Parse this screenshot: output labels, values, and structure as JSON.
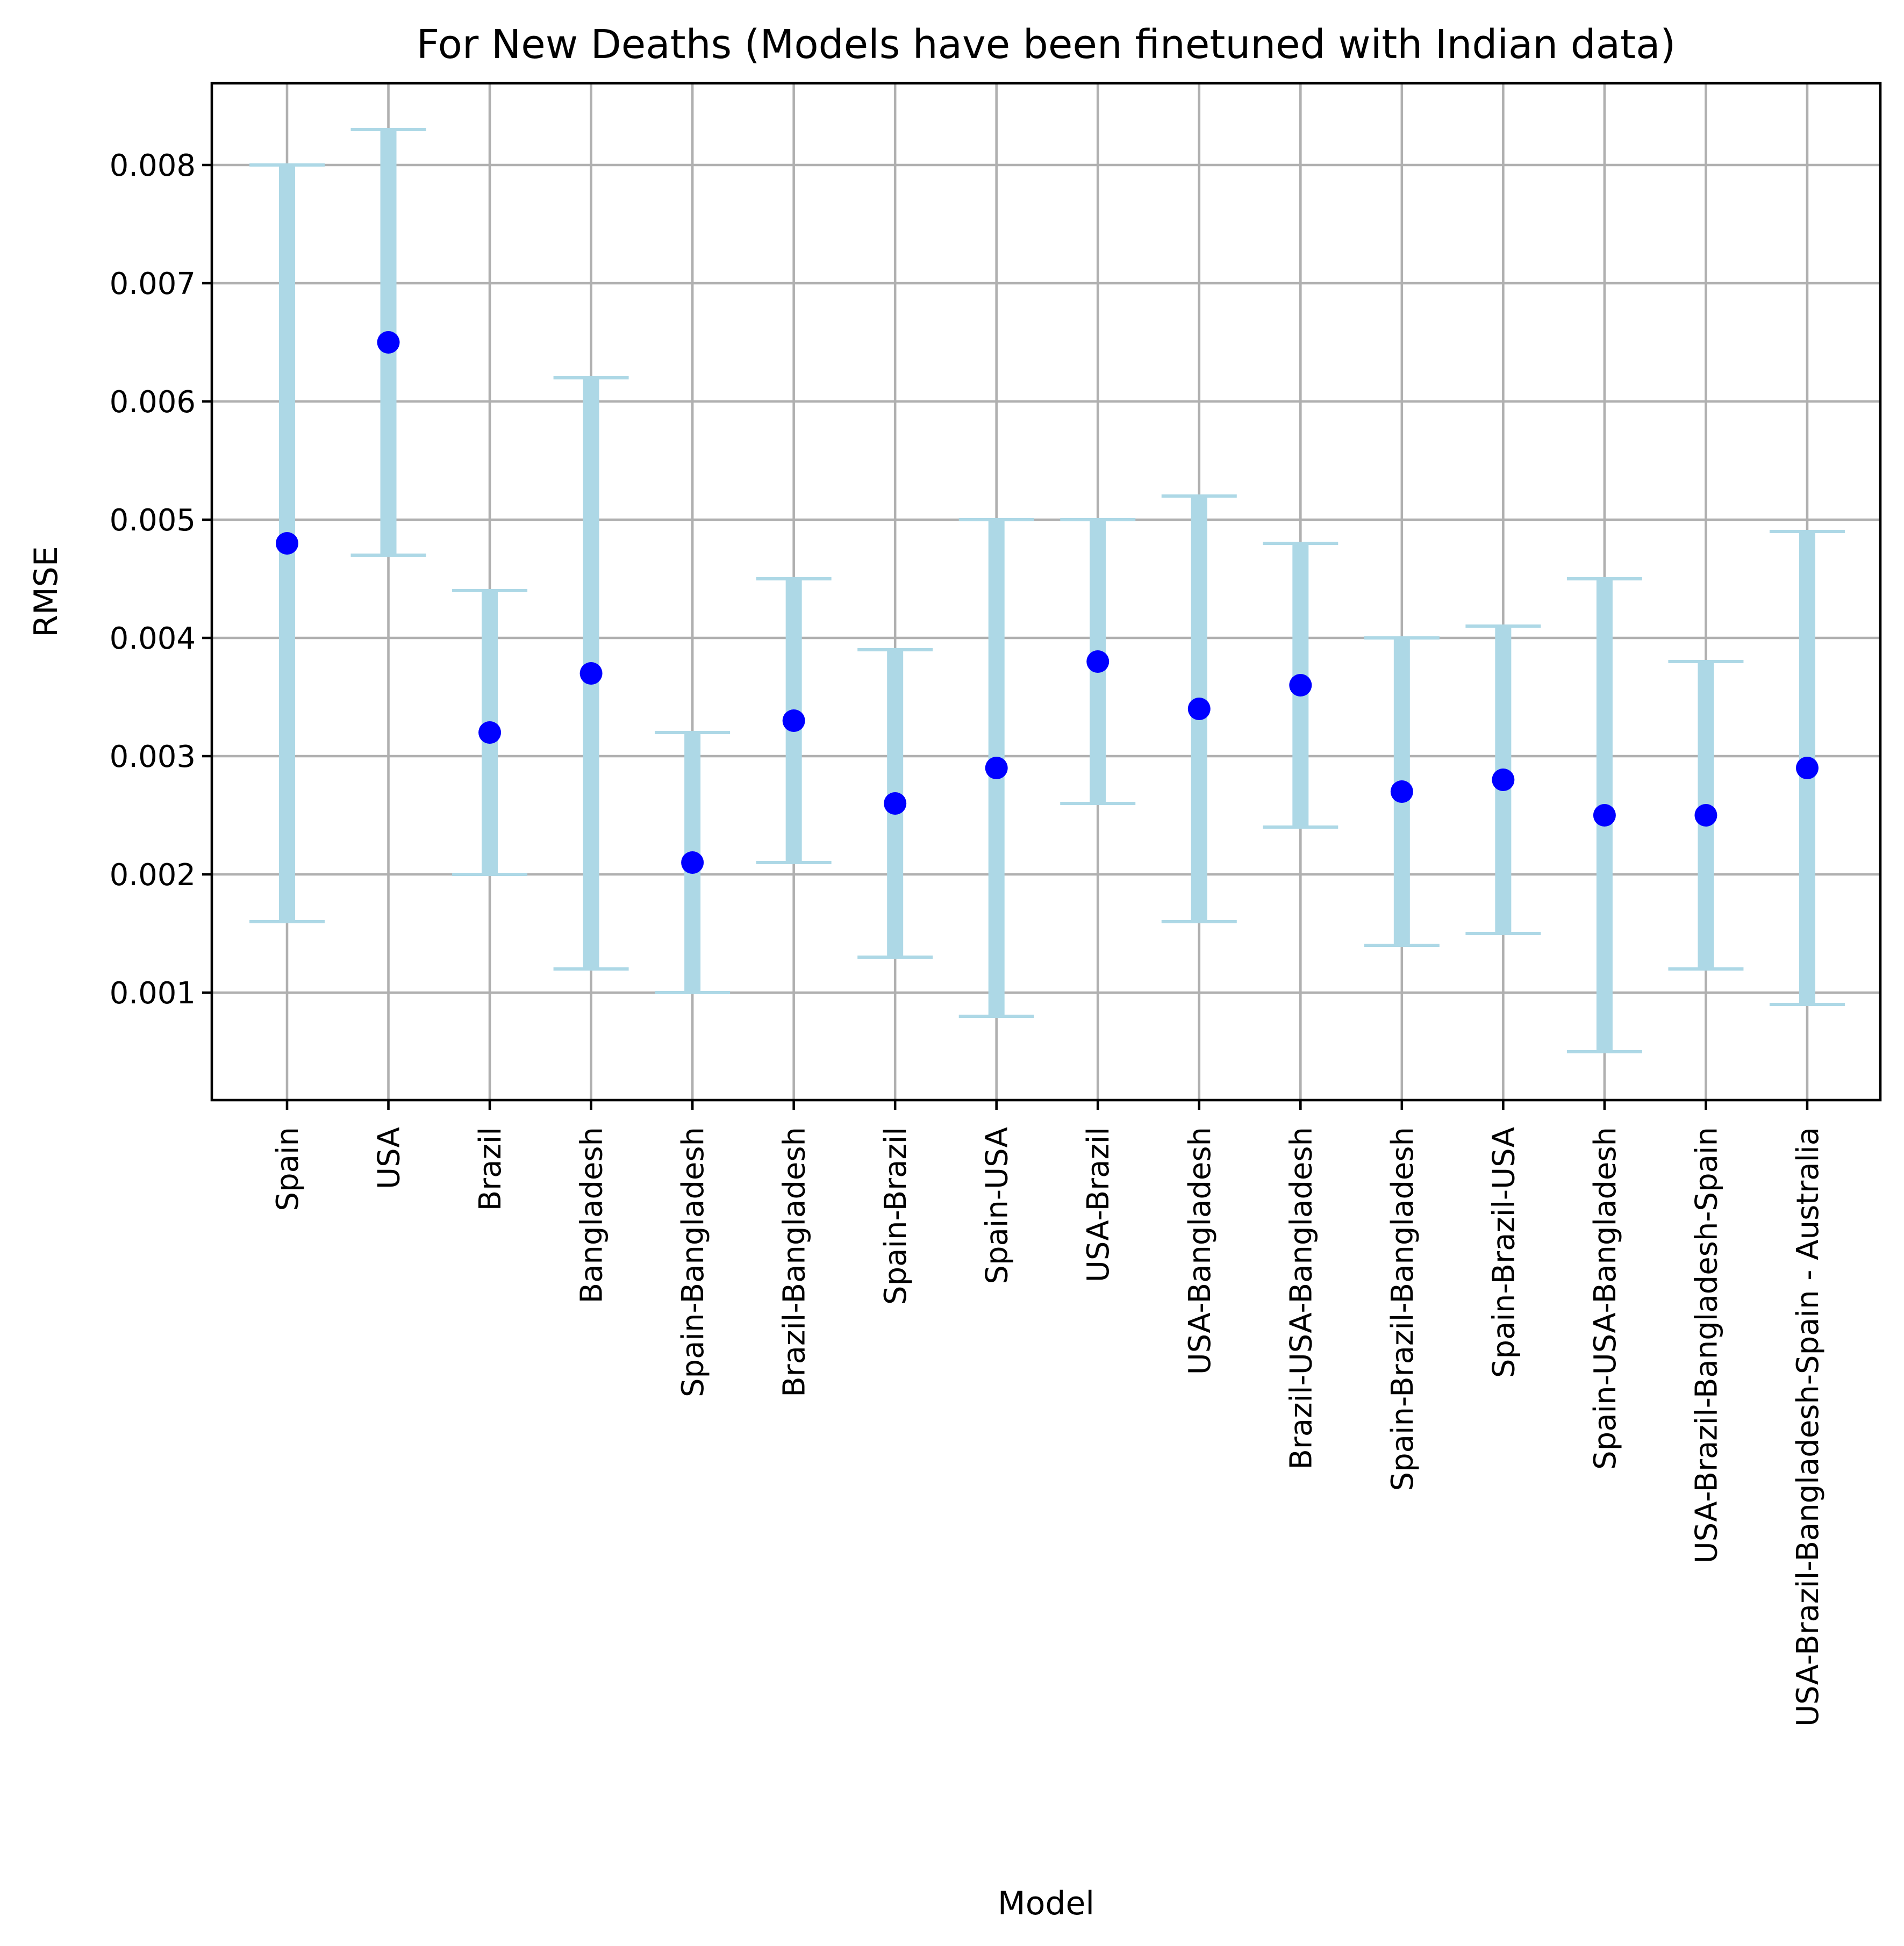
{
  "chart_data": {
    "type": "errorbar",
    "title": "For New Deaths (Models have been finetuned with Indian data)",
    "xlabel": "Model",
    "ylabel": "RMSE",
    "ylim": [
      0.0001,
      0.0087
    ],
    "yticks": [
      "0.001",
      "0.002",
      "0.003",
      "0.004",
      "0.005",
      "0.006",
      "0.007",
      "0.008"
    ],
    "grid": true,
    "point_color": "#0000ff",
    "errorbar_color": "#add8e6",
    "categories": [
      "Spain",
      "USA",
      "Brazil",
      "Bangladesh",
      "Spain-Bangladesh",
      "Brazil-Bangladesh",
      "Spain-Brazil",
      "Spain-USA",
      "USA-Brazil",
      "USA-Bangladesh",
      "Brazil-USA-Bangladesh",
      "Spain-Brazil-Bangladesh",
      "Spain-Brazil-USA",
      "Spain-USA-Bangladesh",
      "USA-Brazil-Bangladesh-Spain",
      "USA-Brazil-Bangladesh-Spain - Australia"
    ],
    "values": [
      0.0048,
      0.0065,
      0.0032,
      0.0037,
      0.0021,
      0.0033,
      0.0026,
      0.0029,
      0.0038,
      0.0034,
      0.0036,
      0.0027,
      0.0028,
      0.0025,
      0.0025,
      0.0029
    ],
    "lower": [
      0.0016,
      0.0047,
      0.002,
      0.0012,
      0.001,
      0.0021,
      0.0013,
      0.0008,
      0.0026,
      0.0016,
      0.0024,
      0.0014,
      0.0015,
      0.0005,
      0.0012,
      0.0009
    ],
    "upper": [
      0.008,
      0.0083,
      0.0044,
      0.0062,
      0.0032,
      0.0045,
      0.0039,
      0.005,
      0.005,
      0.0052,
      0.0048,
      0.004,
      0.0041,
      0.0045,
      0.0038,
      0.0049
    ]
  }
}
